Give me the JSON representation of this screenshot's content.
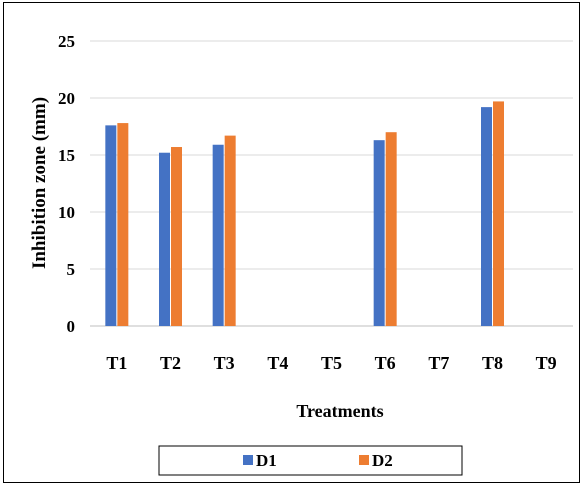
{
  "chart_data": {
    "type": "bar",
    "title": "",
    "xlabel": "Treatments",
    "ylabel": "Inhibition zone (mm)",
    "ylim": [
      0,
      25
    ],
    "yticks": [
      0,
      5,
      10,
      15,
      20,
      25
    ],
    "categories": [
      "T1",
      "T2",
      "T3",
      "T4",
      "T5",
      "T6",
      "T7",
      "T8",
      "T9"
    ],
    "series": [
      {
        "name": "D1",
        "color": "#4472C4",
        "values": [
          17.6,
          15.2,
          15.9,
          0,
          0,
          16.3,
          0,
          19.2,
          0
        ]
      },
      {
        "name": "D2",
        "color": "#ED7D31",
        "values": [
          17.8,
          15.7,
          16.7,
          0,
          0,
          17.0,
          0,
          19.7,
          0
        ]
      }
    ],
    "grid": "horizontal",
    "legend_position": "bottom"
  }
}
